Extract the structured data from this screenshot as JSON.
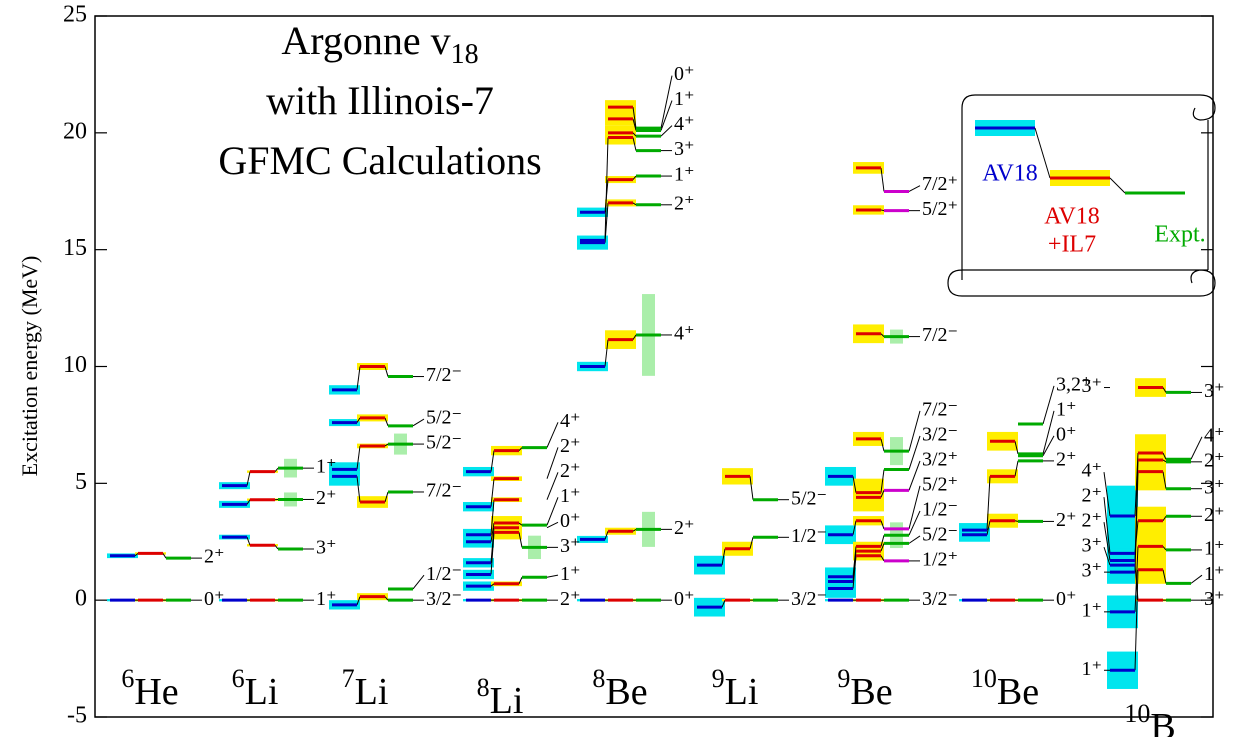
{
  "chart_data": {
    "type": "level-scheme",
    "title": [
      {
        "text": "Argonne v",
        "sub": "18"
      },
      {
        "text": "with Illinois-7"
      },
      {
        "text": "GFMC Calculations"
      }
    ],
    "y_label": "Excitation energy (MeV)",
    "ylim": [
      -5,
      25
    ],
    "yticks": [
      -5,
      0,
      5,
      10,
      15,
      20,
      25
    ],
    "legend": [
      {
        "name": "AV18",
        "color": "#0000cc",
        "box": "#00e5ee"
      },
      {
        "name": [
          "AV18",
          "+IL7"
        ],
        "color": "#dd0000",
        "box": "#ffee00"
      },
      {
        "name": "Expt.",
        "color": "#00aa00",
        "box": "#aaeeaa"
      }
    ],
    "nuclei": [
      {
        "mass": "6",
        "symbol": "He",
        "labels": [
          "0⁺",
          "2⁺"
        ],
        "av18": [
          0,
          1.9
        ],
        "av18_err": [
          0.05,
          0.1
        ],
        "il7": [
          0,
          2.0
        ],
        "il7_err": [
          0.05,
          0.05
        ],
        "expt": [
          0,
          1.8
        ],
        "expt_width": [
          null,
          null
        ]
      },
      {
        "mass": "6",
        "symbol": "Li",
        "labels": [
          "1⁺",
          "3⁺",
          "2⁺",
          "1⁺"
        ],
        "av18": [
          0,
          2.7,
          4.1,
          4.9
        ],
        "av18_err": [
          0.05,
          0.1,
          0.15,
          0.15
        ],
        "il7": [
          0,
          2.35,
          4.3,
          5.5
        ],
        "il7_err": [
          0.05,
          0.05,
          0.05,
          0.05
        ],
        "expt": [
          0,
          2.19,
          4.31,
          5.65
        ],
        "expt_width": [
          null,
          null,
          0.6,
          0.8
        ]
      },
      {
        "mass": "7",
        "symbol": "Li",
        "labels": [
          "3/2⁻",
          "1/2⁻",
          "7/2⁻",
          "5/2⁻",
          "5/2⁻",
          "7/2⁻"
        ],
        "av18": [
          -0.2,
          null,
          5.3,
          5.6,
          7.6,
          9.0
        ],
        "av18_err": [
          0.2,
          null,
          0.4,
          0.3,
          0.15,
          0.2
        ],
        "il7": [
          0.15,
          null,
          4.2,
          6.6,
          7.8,
          10.0
        ],
        "il7_err": [
          0.15,
          null,
          0.25,
          0.1,
          0.15,
          0.15
        ],
        "expt": [
          0,
          0.48,
          4.63,
          6.68,
          7.46,
          9.57
        ],
        "expt_width": [
          null,
          null,
          null,
          0.9,
          null,
          null
        ]
      },
      {
        "mass": "8",
        "symbol": "Li",
        "labels": [
          "2⁺",
          "1⁺",
          "3⁺",
          "0⁺",
          "1⁺",
          "2⁺",
          "2⁺",
          "4⁺"
        ],
        "av18": [
          0,
          0.6,
          1.1,
          1.6,
          2.5,
          2.8,
          4.0,
          5.5
        ],
        "av18_err": [
          0.05,
          0.2,
          0.2,
          0.2,
          0.25,
          0.25,
          0.2,
          0.2
        ],
        "il7": [
          0,
          0.7,
          2.9,
          3.1,
          3.3,
          4.3,
          5.2,
          6.4
        ],
        "il7_err": [
          0.05,
          0.1,
          0.3,
          0.3,
          0.3,
          0.1,
          0.1,
          0.2
        ],
        "expt": [
          0,
          0.98,
          2.26,
          null,
          3.21,
          null,
          null,
          6.53
        ],
        "expt_width": [
          null,
          null,
          1.0,
          null,
          null,
          null,
          null,
          null
        ]
      },
      {
        "mass": "8",
        "symbol": "Be",
        "labels": [
          "0⁺",
          "2⁺",
          "4⁺",
          "2⁺",
          "1⁺",
          "3⁺",
          "4⁺",
          "1⁺",
          "0⁺"
        ],
        "av18": [
          0,
          2.6,
          10.0,
          15.3,
          16.6,
          15.4,
          null,
          null,
          null
        ],
        "av18_err": [
          0.05,
          0.15,
          0.2,
          0.3,
          0.2,
          0.2,
          null,
          null,
          null
        ],
        "il7": [
          0,
          2.95,
          11.15,
          17.0,
          18.0,
          19.8,
          20.0,
          20.6,
          21.1
        ],
        "il7_err": [
          0.05,
          0.15,
          0.4,
          0.15,
          0.15,
          0.3,
          0.3,
          0.3,
          0.3
        ],
        "expt": [
          0,
          3.03,
          11.35,
          16.92,
          18.15,
          19.24,
          19.86,
          20.1,
          20.2
        ],
        "expt_width": [
          null,
          1.5,
          3.5,
          null,
          null,
          null,
          null,
          null,
          null
        ]
      },
      {
        "mass": "9",
        "symbol": "Li",
        "labels": [
          "3/2⁻",
          "1/2⁻",
          "5/2⁻"
        ],
        "av18": [
          -0.3,
          1.5,
          null
        ],
        "av18_err": [
          0.4,
          0.4,
          null
        ],
        "il7": [
          0,
          2.2,
          5.3
        ],
        "il7_err": [
          0.05,
          0.3,
          0.35
        ],
        "expt": [
          0,
          2.69,
          4.3
        ],
        "expt_width": [
          null,
          null,
          null
        ]
      },
      {
        "mass": "9",
        "symbol": "Be",
        "labels": [
          "3/2⁻",
          "1/2⁺",
          "5/2⁻",
          "1/2⁻",
          "5/2⁺",
          "3/2⁺",
          "3/2⁻",
          "7/2⁻",
          "7/2⁻",
          "5/2⁺",
          "7/2⁺"
        ],
        "av18": [
          0,
          0.5,
          0.8,
          1.0,
          2.8,
          null,
          5.3,
          null,
          null,
          null,
          null
        ],
        "av18_err": [
          0.05,
          0.4,
          0.4,
          0.4,
          0.4,
          null,
          0.4,
          null,
          null,
          null,
          null
        ],
        "il7": [
          0,
          1.9,
          2.1,
          2.3,
          3.4,
          4.4,
          4.6,
          6.9,
          11.4,
          16.7,
          18.5
        ],
        "il7_err": [
          0.05,
          0.2,
          0.2,
          0.2,
          0.2,
          0.6,
          0.6,
          0.3,
          0.4,
          0.2,
          0.25
        ],
        "expt": [
          0,
          1.68,
          2.43,
          2.78,
          3.05,
          4.7,
          5.59,
          6.38,
          11.28,
          16.67,
          17.49
        ],
        "expt_width": [
          null,
          null,
          null,
          1.1,
          null,
          null,
          null,
          1.2,
          0.6,
          null,
          null
        ],
        "expt_color": [
          "#00aa00",
          "#cc00cc",
          "#00aa00",
          "#00aa00",
          "#cc00cc",
          "#cc00cc",
          "#00aa00",
          "#00aa00",
          "#00aa00",
          "#cc00cc",
          "#cc00cc"
        ]
      },
      {
        "mass": "10",
        "symbol": "Be",
        "labels": [
          "0⁺",
          "2⁺",
          "2⁺",
          "0⁺",
          "1⁺",
          "3,2⁺"
        ],
        "av18": [
          0,
          2.8,
          3.0,
          null,
          null,
          null
        ],
        "av18_err": [
          0.05,
          0.3,
          0.3,
          null,
          null,
          null
        ],
        "il7": [
          0,
          3.4,
          5.3,
          null,
          6.8,
          null
        ],
        "il7_err": [
          0.05,
          0.3,
          0.3,
          null,
          0.4,
          null
        ],
        "expt": [
          0,
          3.37,
          5.96,
          6.18,
          6.26,
          7.54
        ],
        "expt_width": [
          null,
          null,
          null,
          null,
          null,
          null
        ]
      },
      {
        "mass": "10",
        "symbol": "B",
        "labels": [
          "3⁺",
          "1⁺",
          "1⁺",
          "2⁺",
          "3⁺",
          "2⁺",
          "4⁺",
          "3⁺"
        ],
        "left_labels": true,
        "av18": [
          1.5,
          -3.0,
          -0.5,
          2.0,
          1.2,
          1.7,
          3.6,
          null
        ],
        "av18_err": [
          0.4,
          0.8,
          0.7,
          1.2,
          0.5,
          0.5,
          1.3,
          null
        ],
        "il7": [
          0,
          1.3,
          2.3,
          3.4,
          5.5,
          6.0,
          6.3,
          9.1
        ],
        "il7_err": [
          0.05,
          0.6,
          0.8,
          0.6,
          0.8,
          0.8,
          0.8,
          0.4
        ],
        "expt": [
          0,
          0.72,
          2.15,
          3.59,
          4.77,
          5.92,
          6.03,
          8.89
        ],
        "expt_width": [
          null,
          null,
          null,
          null,
          null,
          null,
          null,
          null
        ]
      }
    ]
  }
}
